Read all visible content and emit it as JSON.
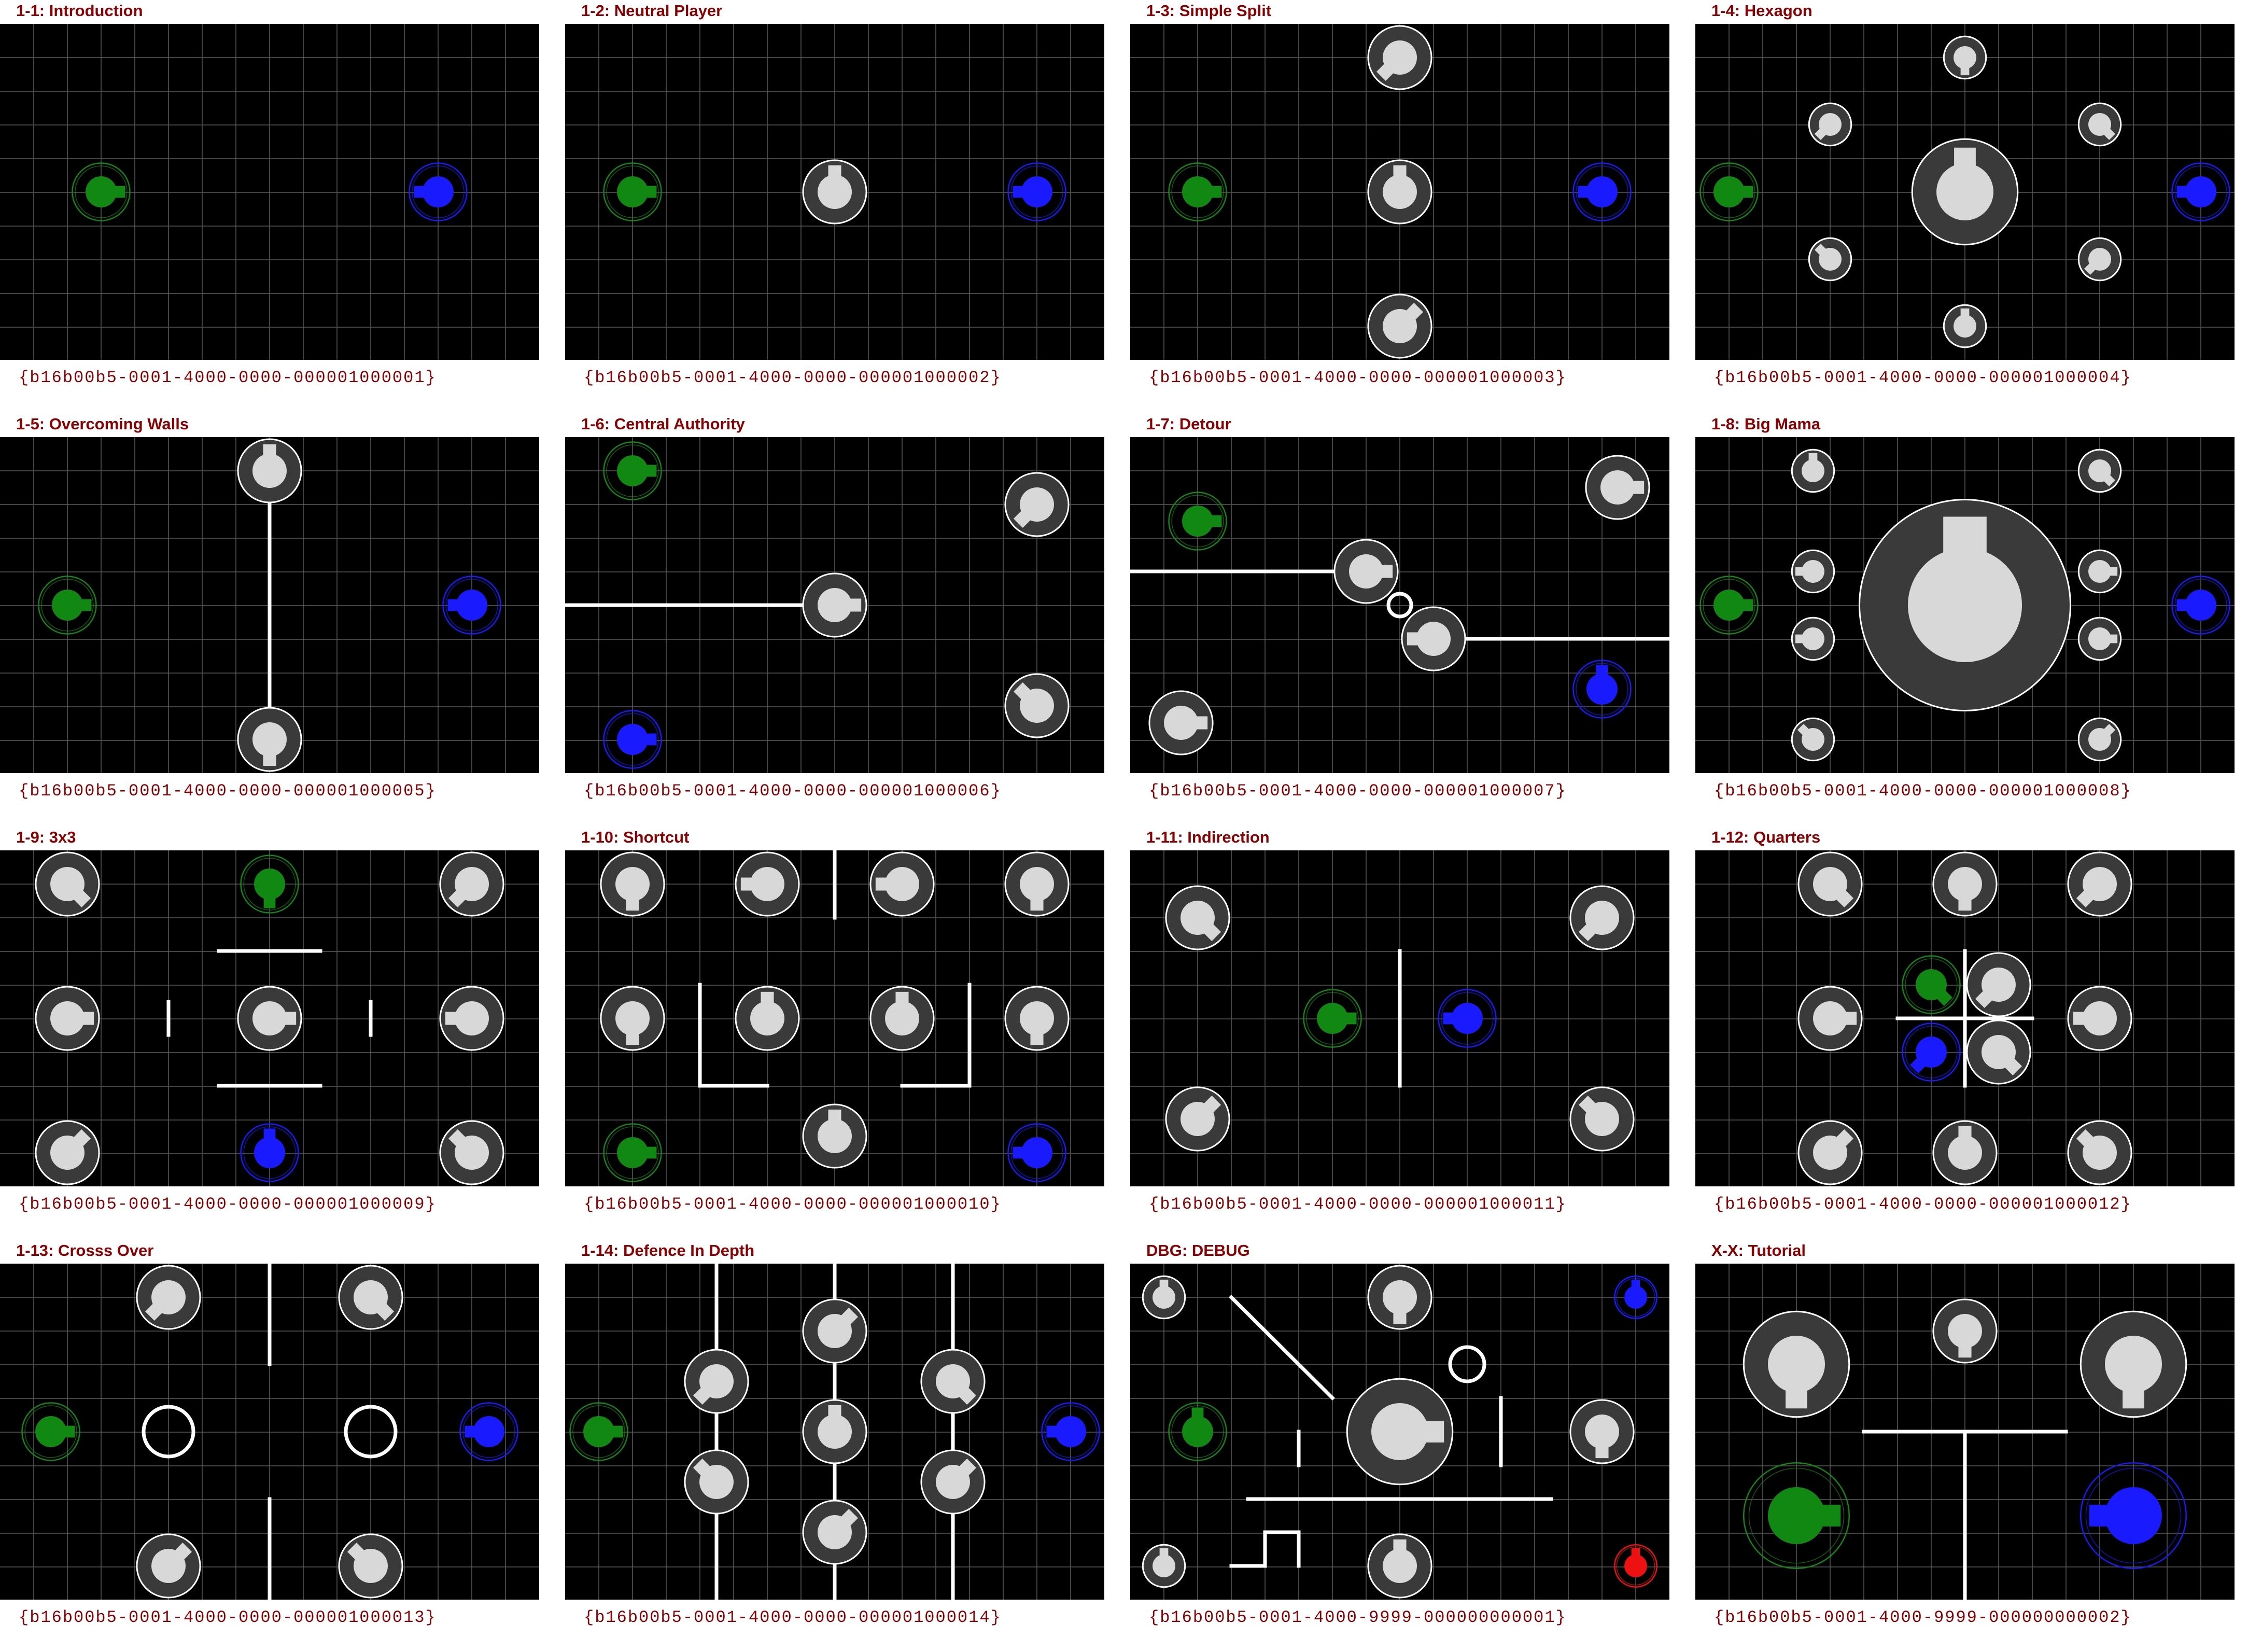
{
  "sheet": {
    "background": "#ffffff",
    "board_background": "#000000",
    "grid_color": "#5a5a5a",
    "title_color": "#8b0000",
    "guid_color": "#8b0000"
  },
  "colors": {
    "green": "#118811",
    "blue": "#1a1aff",
    "red": "#ee1111",
    "neutral": "#d8d8d8",
    "wall": "#ffffff"
  },
  "levels": [
    {
      "title": "1-1: Introduction",
      "guid": "{b16b00b5-0001-4000-0000-000001000001}"
    },
    {
      "title": "1-2: Neutral Player",
      "guid": "{b16b00b5-0001-4000-0000-000001000002}"
    },
    {
      "title": "1-3: Simple Split",
      "guid": "{b16b00b5-0001-4000-0000-000001000003}"
    },
    {
      "title": "1-4: Hexagon",
      "guid": "{b16b00b5-0001-4000-0000-000001000004}"
    },
    {
      "title": "1-5: Overcoming Walls",
      "guid": "{b16b00b5-0001-4000-0000-000001000005}"
    },
    {
      "title": "1-6: Central Authority",
      "guid": "{b16b00b5-0001-4000-0000-000001000006}"
    },
    {
      "title": "1-7: Detour",
      "guid": "{b16b00b5-0001-4000-0000-000001000007}"
    },
    {
      "title": "1-8: Big Mama",
      "guid": "{b16b00b5-0001-4000-0000-000001000008}"
    },
    {
      "title": "1-9: 3x3",
      "guid": "{b16b00b5-0001-4000-0000-000001000009}"
    },
    {
      "title": "1-10: Shortcut",
      "guid": "{b16b00b5-0001-4000-0000-000001000010}"
    },
    {
      "title": "1-11: Indirection",
      "guid": "{b16b00b5-0001-4000-0000-000001000011}"
    },
    {
      "title": "1-12: Quarters",
      "guid": "{b16b00b5-0001-4000-0000-000001000012}"
    },
    {
      "title": "1-13: Crosss Over",
      "guid": "{b16b00b5-0001-4000-0000-000001000013}"
    },
    {
      "title": "1-14: Defence In Depth",
      "guid": "{b16b00b5-0001-4000-0000-000001000014}"
    },
    {
      "title": "DBG: DEBUG",
      "guid": "{b16b00b5-0001-4000-9999-000000000001}"
    },
    {
      "title": "X-X: Tutorial",
      "guid": "{b16b00b5-0001-4000-9999-000000000002}"
    }
  ]
}
